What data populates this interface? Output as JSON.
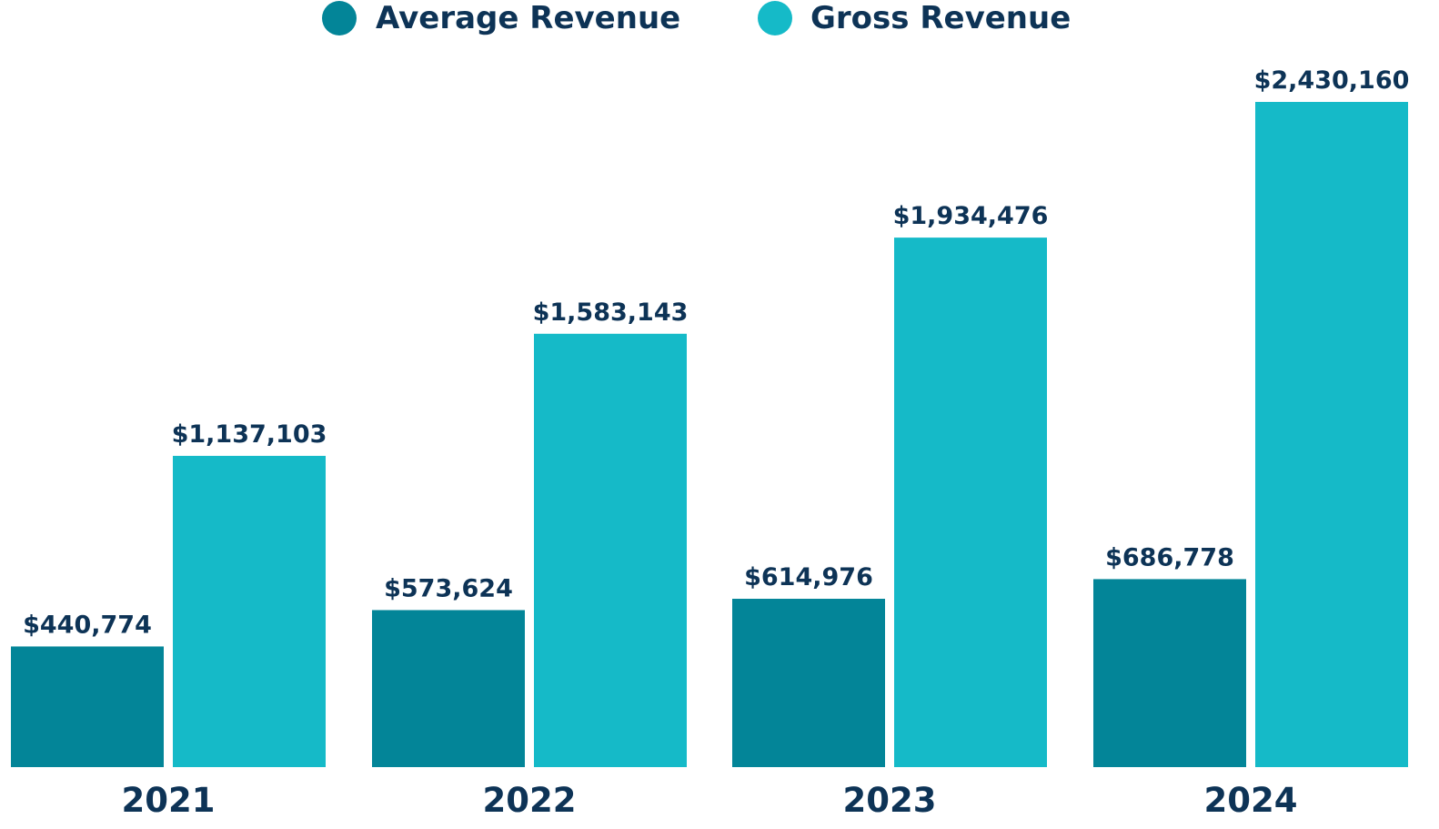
{
  "chart_data": {
    "type": "bar",
    "title": "",
    "xlabel": "",
    "ylabel": "",
    "categories": [
      "2021",
      "2022",
      "2023",
      "2024"
    ],
    "series": [
      {
        "name": "Average Revenue",
        "color": "#038598",
        "values": [
          440774,
          573624,
          614976,
          686778
        ],
        "labels": [
          "$440,774",
          "$573,624",
          "$614,976",
          "$686,778"
        ]
      },
      {
        "name": "Gross Revenue",
        "color": "#15bac8",
        "values": [
          1137103,
          1583143,
          1934476,
          2430160
        ],
        "labels": [
          "$1,137,103",
          "$1,583,143",
          "$1,934,476",
          "$2,430,160"
        ]
      }
    ],
    "ylim": [
      0,
      2430160
    ],
    "grid": false,
    "legend_position": "top-center"
  }
}
